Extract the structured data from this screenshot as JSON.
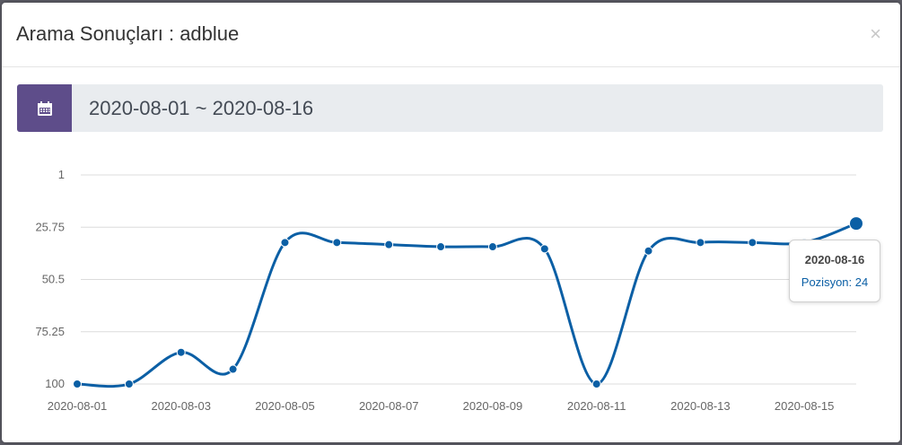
{
  "modal": {
    "title": "Arama Sonuçları : adblue",
    "close_glyph": "×"
  },
  "date_filter": {
    "icon": "calendar-icon",
    "range": "2020-08-01 ~ 2020-08-16",
    "accent_color": "#5e4d8a"
  },
  "tooltip": {
    "date": "2020-08-16",
    "label": "Pozisyon",
    "value": "24",
    "text": "Pozisyon: 24"
  },
  "chart_data": {
    "type": "line",
    "x": [
      "2020-08-01",
      "2020-08-02",
      "2020-08-03",
      "2020-08-04",
      "2020-08-05",
      "2020-08-06",
      "2020-08-07",
      "2020-08-08",
      "2020-08-09",
      "2020-08-10",
      "2020-08-11",
      "2020-08-12",
      "2020-08-13",
      "2020-08-14",
      "2020-08-15",
      "2020-08-16"
    ],
    "series": [
      {
        "values": [
          100,
          100,
          85,
          93,
          33,
          33,
          34,
          35,
          35,
          36,
          100,
          37,
          33,
          33,
          33,
          24
        ],
        "color": "#0b5fa5"
      }
    ],
    "y_inverted": true,
    "ylim": [
      1,
      100
    ],
    "yticks": [
      "1",
      "25.75",
      "50.5",
      "75.25",
      "100"
    ],
    "ytick_values": [
      1,
      25.75,
      50.5,
      75.25,
      100
    ],
    "xtick_labels": [
      "2020-08-01",
      "2020-08-03",
      "2020-08-05",
      "2020-08-07",
      "2020-08-09",
      "2020-08-11",
      "2020-08-13",
      "2020-08-15"
    ],
    "grid": true,
    "highlight_index": 15
  }
}
